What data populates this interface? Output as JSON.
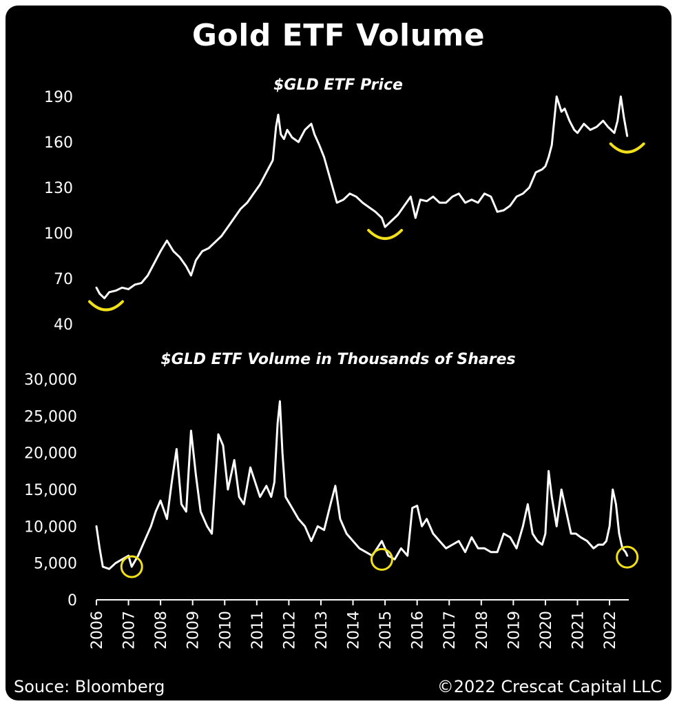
{
  "title": "Gold ETF Volume",
  "footer": {
    "source": "Souce: Bloomberg",
    "copyright": "©2022 Crescat Capital LLC"
  },
  "colors": {
    "background": "#000000",
    "line": "#ffffff",
    "highlight": "#f2e01a"
  },
  "chart_data": [
    {
      "type": "line",
      "title": "$GLD ETF Price",
      "ylim": [
        40,
        190
      ],
      "yticks": [
        40,
        70,
        100,
        130,
        160,
        190
      ],
      "x": [
        2006.0,
        2006.1,
        2006.25,
        2006.4,
        2006.6,
        2006.8,
        2007.0,
        2007.2,
        2007.4,
        2007.6,
        2007.8,
        2008.0,
        2008.2,
        2008.4,
        2008.6,
        2008.8,
        2008.95,
        2009.1,
        2009.3,
        2009.5,
        2009.7,
        2009.9,
        2010.1,
        2010.3,
        2010.5,
        2010.7,
        2010.9,
        2011.1,
        2011.3,
        2011.5,
        2011.6,
        2011.67,
        2011.75,
        2011.85,
        2011.95,
        2012.1,
        2012.3,
        2012.5,
        2012.7,
        2012.8,
        2012.95,
        2013.1,
        2013.3,
        2013.5,
        2013.7,
        2013.9,
        2014.1,
        2014.3,
        2014.5,
        2014.7,
        2014.9,
        2015.0,
        2015.2,
        2015.4,
        2015.6,
        2015.8,
        2015.95,
        2016.1,
        2016.3,
        2016.5,
        2016.7,
        2016.9,
        2017.1,
        2017.3,
        2017.5,
        2017.7,
        2017.9,
        2018.1,
        2018.3,
        2018.5,
        2018.7,
        2018.9,
        2019.1,
        2019.3,
        2019.5,
        2019.7,
        2019.9,
        2020.0,
        2020.1,
        2020.2,
        2020.35,
        2020.5,
        2020.6,
        2020.75,
        2020.9,
        2021.0,
        2021.2,
        2021.4,
        2021.6,
        2021.8,
        2021.95,
        2022.05,
        2022.15,
        2022.25,
        2022.35,
        2022.45,
        2022.55
      ],
      "values": [
        64,
        60,
        57,
        61,
        62,
        64,
        63,
        66,
        67,
        72,
        80,
        88,
        95,
        88,
        84,
        78,
        72,
        82,
        88,
        90,
        94,
        98,
        104,
        110,
        116,
        120,
        126,
        132,
        140,
        148,
        170,
        178,
        165,
        162,
        168,
        163,
        160,
        168,
        172,
        165,
        158,
        150,
        135,
        120,
        122,
        126,
        124,
        120,
        117,
        114,
        110,
        104,
        108,
        112,
        118,
        124,
        110,
        122,
        121,
        124,
        120,
        120,
        124,
        126,
        120,
        122,
        120,
        126,
        124,
        114,
        115,
        118,
        124,
        126,
        130,
        140,
        142,
        144,
        150,
        158,
        190,
        180,
        182,
        174,
        168,
        166,
        172,
        168,
        170,
        174,
        170,
        168,
        166,
        174,
        190,
        176,
        164
      ],
      "annotations": [
        {
          "x": 2006.3,
          "y": 53,
          "label": "low"
        },
        {
          "x": 2015.0,
          "y": 100,
          "label": "low"
        },
        {
          "x": 2022.55,
          "y": 157,
          "label": "low"
        }
      ]
    },
    {
      "type": "line",
      "title": "$GLD ETF Volume in Thousands of Shares",
      "ylim": [
        0,
        30000
      ],
      "yticks": [
        0,
        5000,
        10000,
        15000,
        20000,
        25000,
        30000
      ],
      "ytick_labels": [
        "0",
        "5,000",
        "10,000",
        "15,000",
        "20,000",
        "25,000",
        "30,000"
      ],
      "xticks": [
        "2006",
        "2007",
        "2008",
        "2009",
        "2010",
        "2011",
        "2012",
        "2013",
        "2014",
        "2015",
        "2016",
        "2017",
        "2018",
        "2019",
        "2020",
        "2021",
        "2022"
      ],
      "x": [
        2006.0,
        2006.1,
        2006.2,
        2006.4,
        2006.6,
        2006.8,
        2007.0,
        2007.1,
        2007.3,
        2007.5,
        2007.7,
        2007.85,
        2008.0,
        2008.2,
        2008.35,
        2008.5,
        2008.65,
        2008.8,
        2008.95,
        2009.1,
        2009.25,
        2009.45,
        2009.6,
        2009.8,
        2009.95,
        2010.1,
        2010.3,
        2010.45,
        2010.6,
        2010.8,
        2010.95,
        2011.1,
        2011.3,
        2011.45,
        2011.55,
        2011.65,
        2011.72,
        2011.8,
        2011.9,
        2012.1,
        2012.3,
        2012.5,
        2012.7,
        2012.9,
        2013.1,
        2013.3,
        2013.45,
        2013.6,
        2013.8,
        2014.0,
        2014.2,
        2014.4,
        2014.6,
        2014.75,
        2014.9,
        2015.1,
        2015.3,
        2015.5,
        2015.7,
        2015.85,
        2016.0,
        2016.15,
        2016.3,
        2016.5,
        2016.7,
        2016.9,
        2017.1,
        2017.3,
        2017.5,
        2017.7,
        2017.9,
        2018.1,
        2018.3,
        2018.5,
        2018.7,
        2018.9,
        2019.1,
        2019.3,
        2019.45,
        2019.6,
        2019.75,
        2019.9,
        2020.0,
        2020.1,
        2020.2,
        2020.35,
        2020.5,
        2020.65,
        2020.8,
        2020.95,
        2021.1,
        2021.3,
        2021.5,
        2021.65,
        2021.8,
        2021.9,
        2022.0,
        2022.1,
        2022.2,
        2022.3,
        2022.4,
        2022.5,
        2022.55
      ],
      "values": [
        10000,
        7000,
        4500,
        4200,
        5000,
        5500,
        6000,
        4500,
        6000,
        8000,
        10000,
        12000,
        13500,
        11000,
        16000,
        20500,
        13000,
        12000,
        23000,
        17000,
        12000,
        10000,
        9000,
        22500,
        21000,
        15000,
        19000,
        14000,
        13000,
        18000,
        16000,
        14000,
        15500,
        14000,
        16000,
        24000,
        27000,
        20000,
        14000,
        12500,
        11000,
        10000,
        8000,
        10000,
        9500,
        13000,
        15500,
        11000,
        9000,
        8000,
        7000,
        6500,
        6000,
        7000,
        8000,
        6000,
        5500,
        7000,
        6000,
        12500,
        12800,
        10000,
        11000,
        9000,
        8000,
        7000,
        7500,
        8000,
        6500,
        8500,
        7000,
        7000,
        6500,
        6500,
        9000,
        8500,
        7000,
        10000,
        13000,
        9000,
        8000,
        7500,
        9000,
        17500,
        14000,
        10000,
        15000,
        12000,
        9000,
        9000,
        8500,
        8000,
        7000,
        7500,
        7500,
        8000,
        10000,
        15000,
        13000,
        9000,
        7000,
        6500,
        6000
      ],
      "annotations": [
        {
          "x": 2007.1,
          "y": 4500,
          "label": "low"
        },
        {
          "x": 2014.9,
          "y": 5500,
          "label": "low"
        },
        {
          "x": 2022.55,
          "y": 5800,
          "label": "low"
        }
      ]
    }
  ]
}
